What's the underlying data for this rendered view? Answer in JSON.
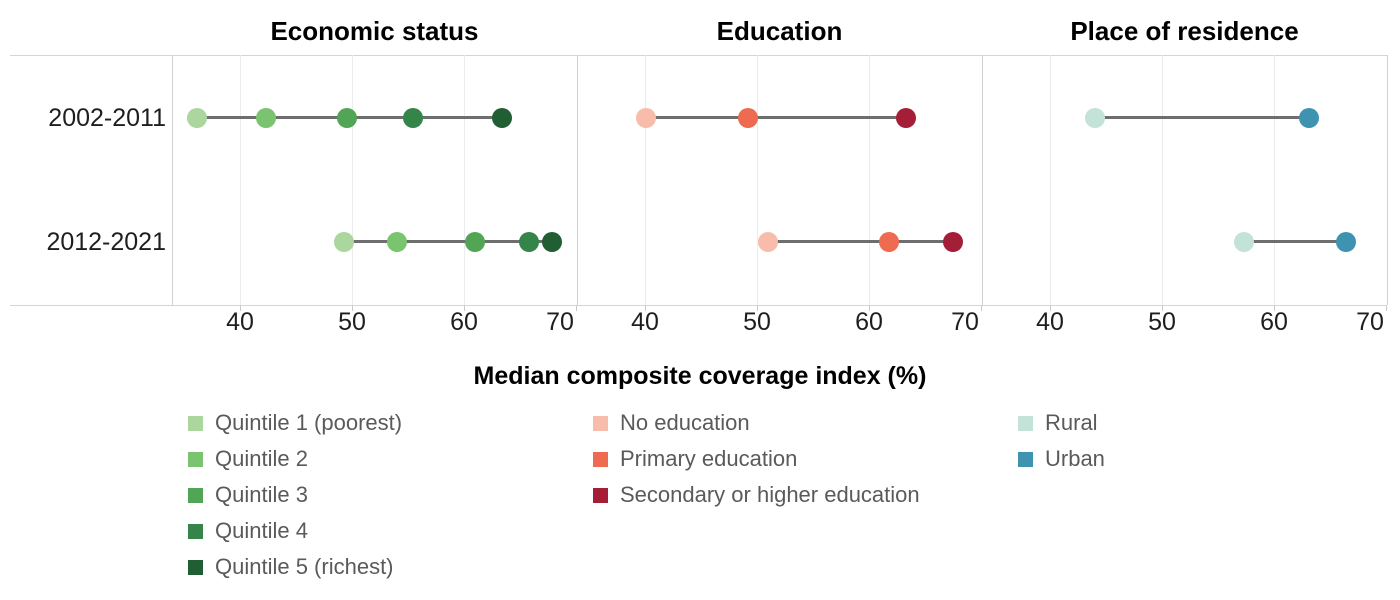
{
  "chart_data": {
    "type": "scatter",
    "subtype": "dumbbell-dot-plot",
    "axis": {
      "label": "Median composite coverage index (%)",
      "domain": [
        33.9,
        70.1
      ],
      "ticks": [
        40,
        50,
        60,
        70
      ]
    },
    "rows": [
      "2002-2011",
      "2012-2021"
    ],
    "connector_color": "#6e6e6e",
    "grid": true,
    "legend_position": "bottom",
    "panels": [
      {
        "title": "Economic status",
        "series": [
          {
            "label": "Quintile 1 (poorest)",
            "color": "#abd69e",
            "values": [
              36.1,
              49.3
            ]
          },
          {
            "label": "Quintile 2",
            "color": "#7ac36f",
            "values": [
              42.3,
              54.0
            ]
          },
          {
            "label": "Quintile 3",
            "color": "#52a554",
            "values": [
              49.5,
              61.0
            ]
          },
          {
            "label": "Quintile 4",
            "color": "#35854a",
            "values": [
              55.4,
              65.8
            ]
          },
          {
            "label": "Quintile 5 (richest)",
            "color": "#215e33",
            "values": [
              63.4,
              67.9
            ]
          }
        ]
      },
      {
        "title": "Education",
        "series": [
          {
            "label": "No education",
            "color": "#f8bcab",
            "values": [
              40.1,
              51.0
            ]
          },
          {
            "label": "Primary education",
            "color": "#ee6a50",
            "values": [
              49.2,
              61.8
            ]
          },
          {
            "label": "Secondary or higher education",
            "color": "#a51e38",
            "values": [
              63.3,
              67.5
            ]
          }
        ]
      },
      {
        "title": "Place of residence",
        "series": [
          {
            "label": "Rural",
            "color": "#c3e2d8",
            "values": [
              44.0,
              57.3
            ]
          },
          {
            "label": "Urban",
            "color": "#3e93b1",
            "values": [
              63.1,
              66.4
            ]
          }
        ]
      }
    ]
  }
}
